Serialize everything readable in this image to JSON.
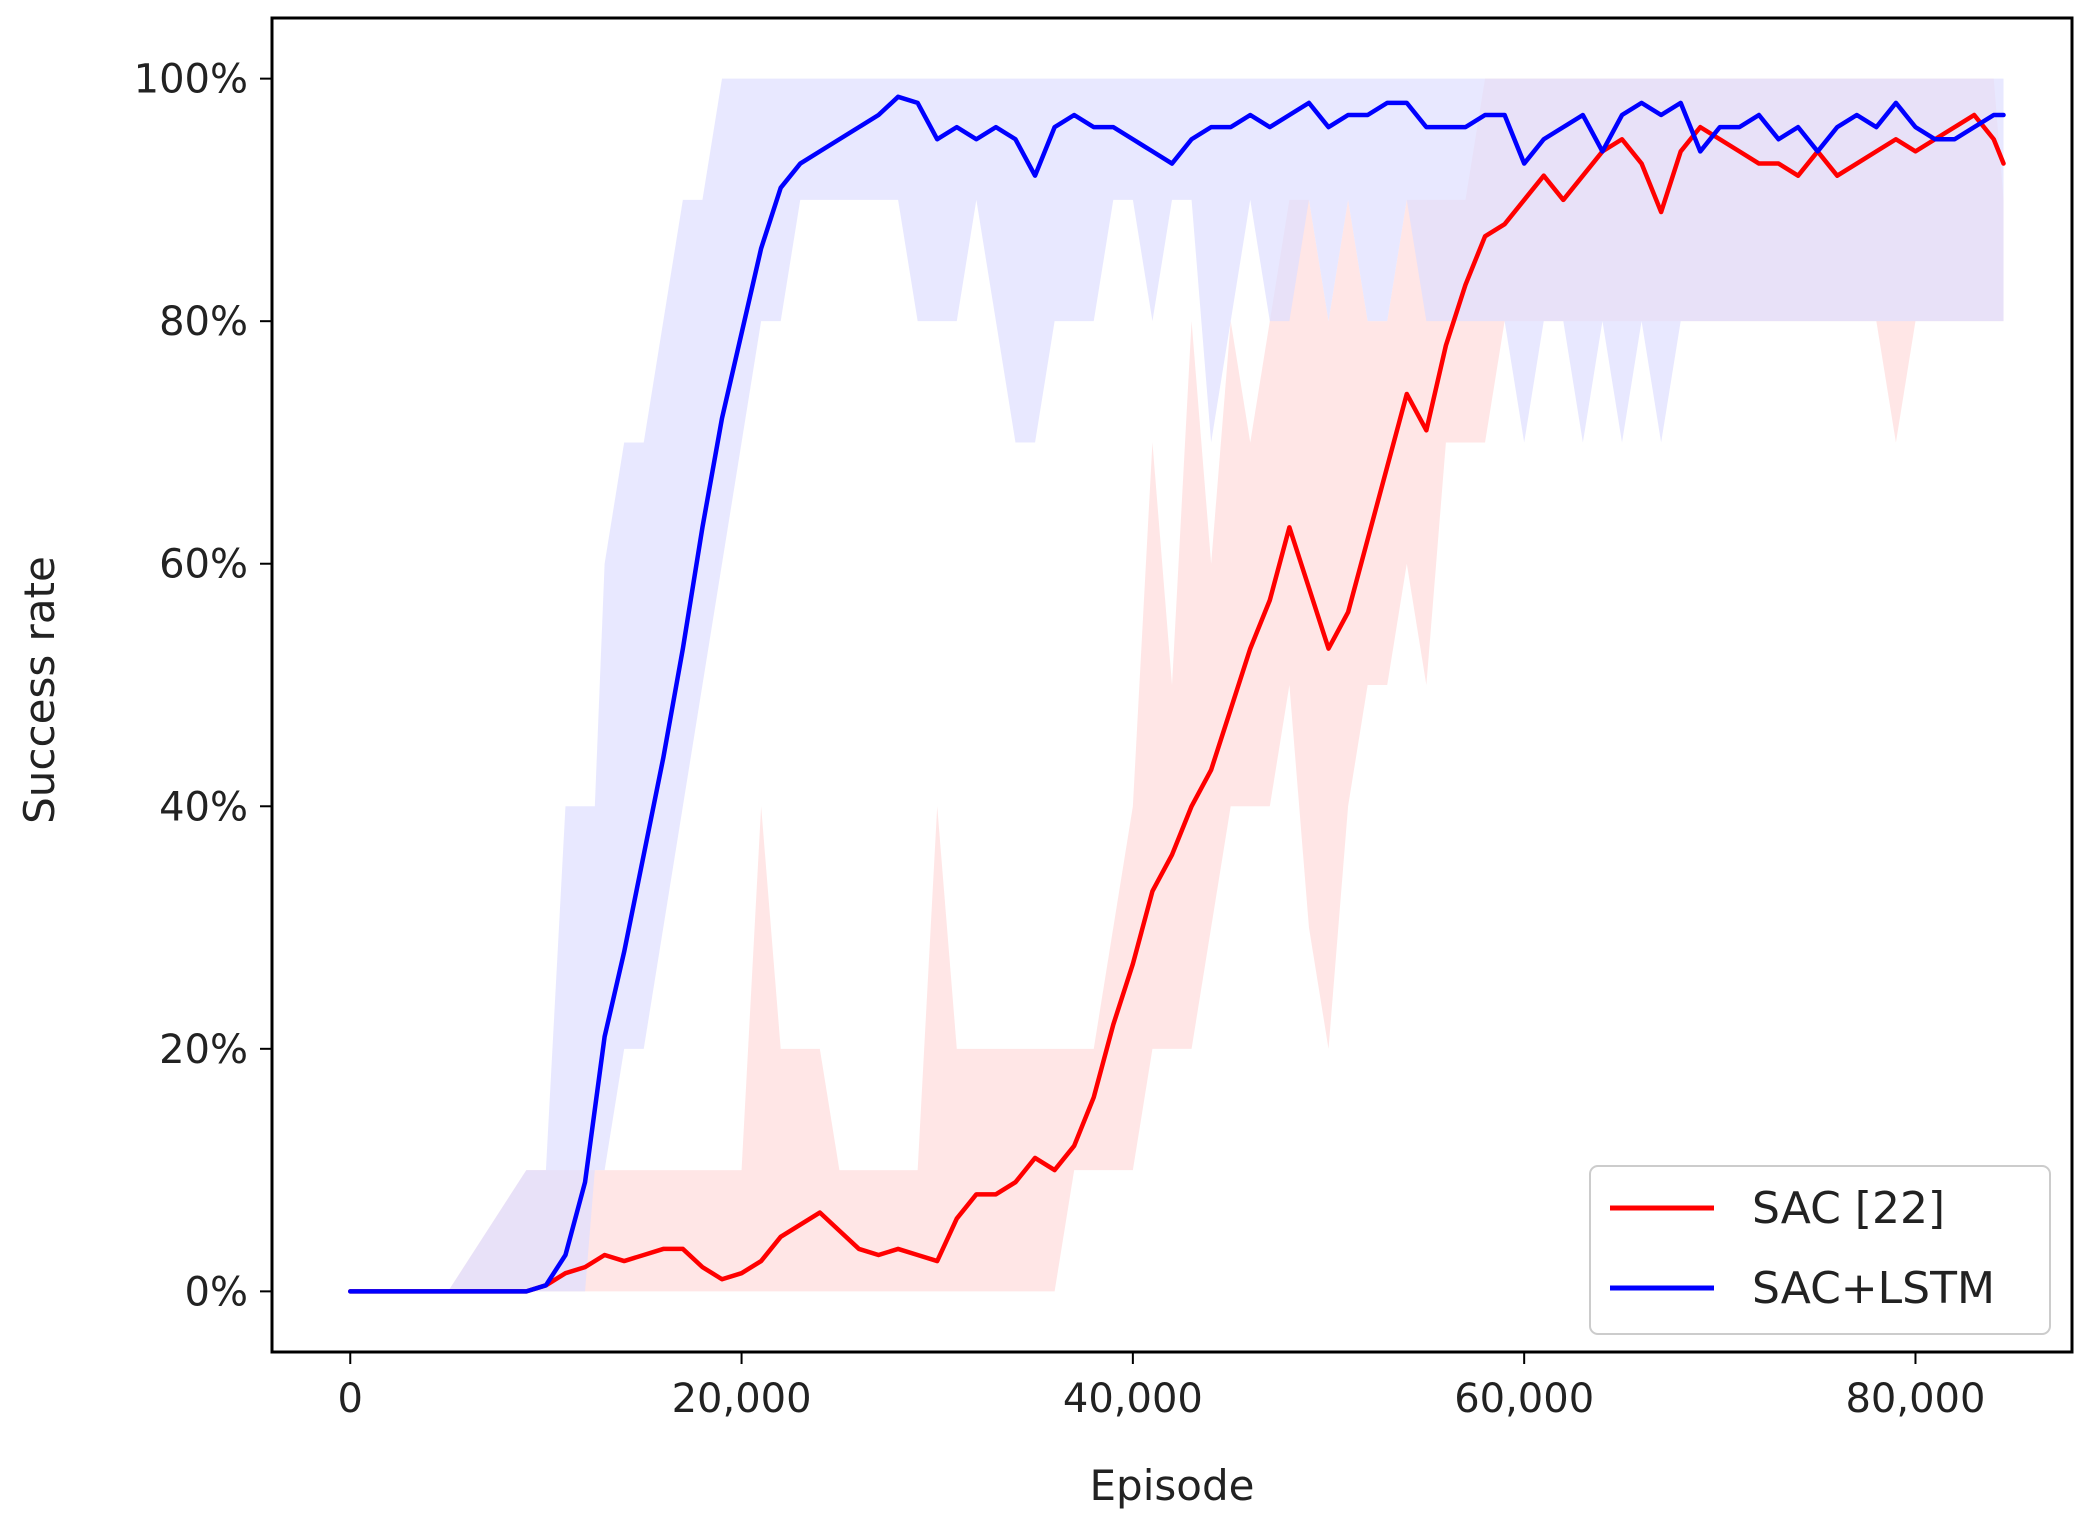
{
  "chart_data": {
    "type": "line",
    "title": "",
    "xlabel": "Episode",
    "ylabel": "Success rate",
    "xlim": [
      -4000,
      88000
    ],
    "ylim": [
      -5,
      105
    ],
    "xticks": [
      0,
      20000,
      40000,
      60000,
      80000
    ],
    "xtick_labels": [
      "0",
      "20,000",
      "40,000",
      "60,000",
      "80,000"
    ],
    "yticks": [
      0,
      20,
      40,
      60,
      80,
      100
    ],
    "ytick_labels": [
      "0%",
      "20%",
      "40%",
      "60%",
      "80%",
      "100%"
    ],
    "grid": false,
    "legend_position": "lower right",
    "series": [
      {
        "name": "SAC [22]",
        "color": "#ff0000",
        "raw_color": "#ffdede",
        "x": [
          0,
          5000,
          9000,
          10000,
          11000,
          12000,
          13000,
          14000,
          15000,
          16000,
          17000,
          18000,
          19000,
          20000,
          21000,
          22000,
          23000,
          24000,
          25000,
          26000,
          27000,
          28000,
          29000,
          30000,
          31000,
          32000,
          33000,
          34000,
          35000,
          36000,
          37000,
          38000,
          39000,
          40000,
          41000,
          42000,
          43000,
          44000,
          45000,
          46000,
          47000,
          48000,
          49000,
          50000,
          51000,
          52000,
          53000,
          54000,
          55000,
          56000,
          57000,
          58000,
          59000,
          60000,
          61000,
          62000,
          63000,
          64000,
          65000,
          66000,
          67000,
          68000,
          69000,
          70000,
          71000,
          72000,
          73000,
          74000,
          75000,
          76000,
          77000,
          78000,
          79000,
          80000,
          81000,
          82000,
          83000,
          84000,
          84500
        ],
        "smoothed": [
          0,
          0,
          0,
          0.5,
          1.5,
          2,
          3,
          2.5,
          3,
          3.5,
          3.5,
          2,
          1,
          1.5,
          2.5,
          4.5,
          5.5,
          6.5,
          5,
          3.5,
          3,
          3.5,
          3,
          2.5,
          6,
          8,
          8,
          9,
          11,
          10,
          12,
          16,
          22,
          27,
          33,
          36,
          40,
          43,
          48,
          53,
          57,
          63,
          58,
          53,
          56,
          62,
          68,
          74,
          71,
          78,
          83,
          87,
          88,
          90,
          92,
          90,
          92,
          94,
          95,
          93,
          89,
          94,
          96,
          95,
          94,
          93,
          93,
          92,
          94,
          92,
          93,
          94,
          95,
          94,
          95,
          96,
          97,
          95,
          93
        ],
        "raw_band": [
          [
            0,
            0
          ],
          [
            0,
            0
          ],
          [
            0,
            10
          ],
          [
            0,
            10
          ],
          [
            0,
            10
          ],
          [
            0,
            10
          ],
          [
            0,
            10
          ],
          [
            0,
            10
          ],
          [
            0,
            10
          ],
          [
            0,
            10
          ],
          [
            0,
            10
          ],
          [
            0,
            10
          ],
          [
            0,
            10
          ],
          [
            0,
            10
          ],
          [
            0,
            40
          ],
          [
            0,
            20
          ],
          [
            0,
            20
          ],
          [
            0,
            20
          ],
          [
            0,
            10
          ],
          [
            0,
            10
          ],
          [
            0,
            10
          ],
          [
            0,
            10
          ],
          [
            0,
            10
          ],
          [
            0,
            40
          ],
          [
            0,
            20
          ],
          [
            0,
            20
          ],
          [
            0,
            20
          ],
          [
            0,
            20
          ],
          [
            0,
            20
          ],
          [
            0,
            20
          ],
          [
            10,
            20
          ],
          [
            10,
            20
          ],
          [
            10,
            30
          ],
          [
            10,
            40
          ],
          [
            20,
            70
          ],
          [
            20,
            50
          ],
          [
            20,
            80
          ],
          [
            30,
            60
          ],
          [
            40,
            80
          ],
          [
            40,
            70
          ],
          [
            40,
            80
          ],
          [
            50,
            90
          ],
          [
            30,
            90
          ],
          [
            20,
            80
          ],
          [
            40,
            90
          ],
          [
            50,
            80
          ],
          [
            50,
            80
          ],
          [
            60,
            90
          ],
          [
            50,
            90
          ],
          [
            70,
            90
          ],
          [
            70,
            90
          ],
          [
            70,
            100
          ],
          [
            80,
            100
          ],
          [
            80,
            100
          ],
          [
            80,
            100
          ],
          [
            80,
            100
          ],
          [
            80,
            100
          ],
          [
            80,
            100
          ],
          [
            80,
            100
          ],
          [
            80,
            100
          ],
          [
            80,
            100
          ],
          [
            80,
            100
          ],
          [
            80,
            100
          ],
          [
            80,
            100
          ],
          [
            80,
            100
          ],
          [
            80,
            100
          ],
          [
            80,
            100
          ],
          [
            80,
            100
          ],
          [
            80,
            100
          ],
          [
            80,
            100
          ],
          [
            80,
            100
          ],
          [
            80,
            100
          ],
          [
            70,
            100
          ],
          [
            80,
            100
          ],
          [
            80,
            100
          ],
          [
            80,
            100
          ],
          [
            80,
            100
          ],
          [
            80,
            100
          ],
          [
            80,
            90
          ]
        ]
      },
      {
        "name": "SAC+LSTM",
        "color": "#0000ff",
        "raw_color": "#dedeff",
        "x": [
          0,
          5000,
          9000,
          10000,
          11000,
          12000,
          12500,
          13000,
          14000,
          15000,
          16000,
          17000,
          18000,
          19000,
          20000,
          21000,
          22000,
          23000,
          24000,
          25000,
          26000,
          27000,
          28000,
          29000,
          30000,
          31000,
          32000,
          33000,
          34000,
          35000,
          36000,
          37000,
          38000,
          39000,
          40000,
          41000,
          42000,
          43000,
          44000,
          45000,
          46000,
          47000,
          48000,
          49000,
          50000,
          51000,
          52000,
          53000,
          54000,
          55000,
          56000,
          57000,
          58000,
          59000,
          60000,
          61000,
          62000,
          63000,
          64000,
          65000,
          66000,
          67000,
          68000,
          69000,
          70000,
          71000,
          72000,
          73000,
          74000,
          75000,
          76000,
          77000,
          78000,
          79000,
          80000,
          81000,
          82000,
          83000,
          84000,
          84500
        ],
        "smoothed": [
          0,
          0,
          0,
          0.5,
          3,
          9,
          15,
          21,
          28,
          36,
          44,
          53,
          63,
          72,
          79,
          86,
          91,
          93,
          94,
          95,
          96,
          97,
          98.5,
          98,
          95,
          96,
          95,
          96,
          95,
          92,
          96,
          97,
          96,
          96,
          95,
          94,
          93,
          95,
          96,
          96,
          97,
          96,
          97,
          98,
          96,
          97,
          97,
          98,
          98,
          96,
          96,
          96,
          97,
          97,
          93,
          95,
          96,
          97,
          94,
          97,
          98,
          97,
          98,
          94,
          96,
          96,
          97,
          95,
          96,
          94,
          96,
          97,
          96,
          98,
          96,
          95,
          95,
          96,
          97,
          97
        ],
        "raw_band": [
          [
            0,
            0
          ],
          [
            0,
            0
          ],
          [
            0,
            10
          ],
          [
            0,
            10
          ],
          [
            0,
            40
          ],
          [
            0,
            40
          ],
          [
            10,
            40
          ],
          [
            10,
            60
          ],
          [
            20,
            70
          ],
          [
            20,
            70
          ],
          [
            30,
            80
          ],
          [
            40,
            90
          ],
          [
            50,
            90
          ],
          [
            60,
            100
          ],
          [
            70,
            100
          ],
          [
            80,
            100
          ],
          [
            80,
            100
          ],
          [
            90,
            100
          ],
          [
            90,
            100
          ],
          [
            90,
            100
          ],
          [
            90,
            100
          ],
          [
            90,
            100
          ],
          [
            90,
            100
          ],
          [
            80,
            100
          ],
          [
            80,
            100
          ],
          [
            80,
            100
          ],
          [
            90,
            100
          ],
          [
            80,
            100
          ],
          [
            70,
            100
          ],
          [
            70,
            100
          ],
          [
            80,
            100
          ],
          [
            80,
            100
          ],
          [
            80,
            100
          ],
          [
            90,
            100
          ],
          [
            90,
            100
          ],
          [
            80,
            100
          ],
          [
            90,
            100
          ],
          [
            90,
            100
          ],
          [
            70,
            100
          ],
          [
            80,
            100
          ],
          [
            90,
            100
          ],
          [
            80,
            100
          ],
          [
            80,
            100
          ],
          [
            90,
            100
          ],
          [
            80,
            100
          ],
          [
            90,
            100
          ],
          [
            80,
            100
          ],
          [
            80,
            100
          ],
          [
            90,
            100
          ],
          [
            80,
            100
          ],
          [
            80,
            100
          ],
          [
            80,
            100
          ],
          [
            80,
            100
          ],
          [
            80,
            100
          ],
          [
            70,
            100
          ],
          [
            80,
            100
          ],
          [
            80,
            100
          ],
          [
            70,
            100
          ],
          [
            80,
            100
          ],
          [
            70,
            100
          ],
          [
            80,
            100
          ],
          [
            70,
            100
          ],
          [
            80,
            100
          ],
          [
            80,
            100
          ],
          [
            80,
            100
          ],
          [
            80,
            100
          ],
          [
            80,
            100
          ],
          [
            80,
            100
          ],
          [
            80,
            100
          ],
          [
            80,
            100
          ],
          [
            80,
            100
          ],
          [
            80,
            100
          ],
          [
            80,
            100
          ],
          [
            80,
            100
          ],
          [
            80,
            100
          ],
          [
            80,
            100
          ],
          [
            80,
            100
          ],
          [
            80,
            100
          ],
          [
            80,
            100
          ],
          [
            80,
            100
          ]
        ]
      }
    ]
  }
}
